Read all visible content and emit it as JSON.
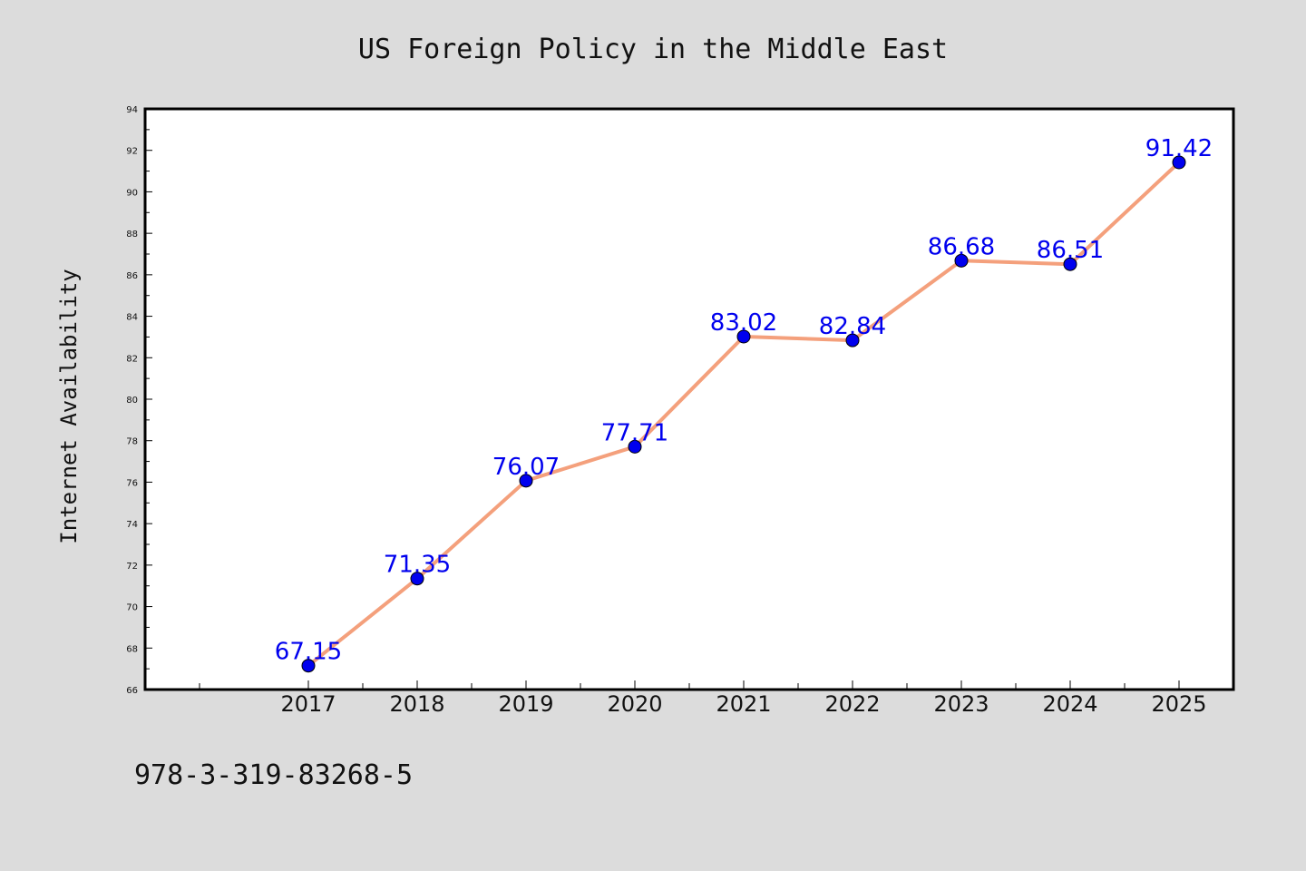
{
  "chart_data": {
    "type": "line",
    "title": "US Foreign Policy in the Middle East",
    "xlabel": "",
    "ylabel": "Internet Availability",
    "categories": [
      "2017",
      "2018",
      "2019",
      "2020",
      "2021",
      "2022",
      "2023",
      "2024",
      "2025"
    ],
    "values": [
      67.15,
      71.35,
      76.07,
      77.71,
      83.02,
      82.84,
      86.68,
      86.51,
      91.42
    ],
    "data_labels": [
      "67.15",
      "71.35",
      "76.07",
      "77.71",
      "83.02",
      "82.84",
      "86.68",
      "86.51",
      "91.42"
    ],
    "ylim": [
      66,
      94
    ],
    "yticks": [
      "66",
      "68",
      "70",
      "72",
      "74",
      "76",
      "78",
      "80",
      "82",
      "84",
      "86",
      "88",
      "90",
      "92",
      "94"
    ],
    "grid": false,
    "legend": "none",
    "line_color": "#f4a07c",
    "marker_color": "#0000ee",
    "label_color": "#0000ee",
    "background_color": "#dcdcdc",
    "plot_background_color": "#ffffff"
  },
  "footer": {
    "isbn": "978-3-319-83268-5"
  }
}
